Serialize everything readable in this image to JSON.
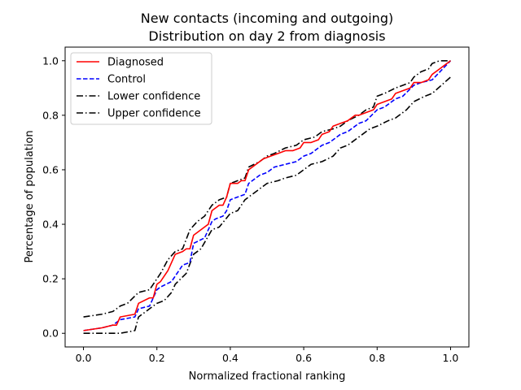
{
  "chart_data": {
    "type": "line",
    "title_line1": "New contacts (incoming and outgoing)",
    "title_line2": "Distribution on day 2 from diagnosis",
    "xlabel": "Normalized fractional ranking",
    "ylabel": "Percentage of population",
    "xlim": [
      -0.05,
      1.05
    ],
    "ylim": [
      -0.05,
      1.05
    ],
    "xticks": [
      0.0,
      0.2,
      0.4,
      0.6,
      0.8,
      1.0
    ],
    "xtick_labels": [
      "0.0",
      "0.2",
      "0.4",
      "0.6",
      "0.8",
      "1.0"
    ],
    "yticks": [
      0.0,
      0.2,
      0.4,
      0.6,
      0.8,
      1.0
    ],
    "ytick_labels": [
      "0.0",
      "0.2",
      "0.4",
      "0.6",
      "0.8",
      "1.0"
    ],
    "grid": false,
    "legend_position": "top-left",
    "series": [
      {
        "name": "Diagnosed",
        "color": "#ff0000",
        "dash": "solid",
        "x": [
          0.0,
          0.05,
          0.08,
          0.09,
          0.1,
          0.14,
          0.15,
          0.18,
          0.19,
          0.2,
          0.21,
          0.23,
          0.25,
          0.27,
          0.28,
          0.29,
          0.3,
          0.32,
          0.34,
          0.35,
          0.37,
          0.38,
          0.39,
          0.4,
          0.42,
          0.43,
          0.44,
          0.45,
          0.47,
          0.49,
          0.51,
          0.53,
          0.55,
          0.57,
          0.59,
          0.6,
          0.62,
          0.64,
          0.65,
          0.67,
          0.68,
          0.7,
          0.72,
          0.74,
          0.75,
          0.77,
          0.79,
          0.8,
          0.82,
          0.84,
          0.85,
          0.87,
          0.89,
          0.9,
          0.92,
          0.94,
          0.95,
          0.97,
          1.0
        ],
        "y": [
          0.01,
          0.02,
          0.03,
          0.03,
          0.06,
          0.07,
          0.11,
          0.13,
          0.13,
          0.18,
          0.19,
          0.23,
          0.29,
          0.3,
          0.31,
          0.31,
          0.36,
          0.38,
          0.4,
          0.45,
          0.47,
          0.47,
          0.5,
          0.55,
          0.55,
          0.56,
          0.56,
          0.6,
          0.62,
          0.64,
          0.65,
          0.66,
          0.67,
          0.67,
          0.68,
          0.7,
          0.7,
          0.71,
          0.73,
          0.74,
          0.76,
          0.77,
          0.78,
          0.8,
          0.8,
          0.81,
          0.82,
          0.84,
          0.85,
          0.86,
          0.88,
          0.89,
          0.9,
          0.92,
          0.92,
          0.93,
          0.95,
          0.97,
          1.0
        ]
      },
      {
        "name": "Control",
        "color": "#0000ff",
        "dash": "dashed",
        "x": [
          0.0,
          0.05,
          0.08,
          0.1,
          0.14,
          0.15,
          0.18,
          0.2,
          0.21,
          0.24,
          0.27,
          0.29,
          0.3,
          0.33,
          0.35,
          0.36,
          0.38,
          0.39,
          0.4,
          0.42,
          0.44,
          0.45,
          0.48,
          0.5,
          0.52,
          0.55,
          0.58,
          0.6,
          0.62,
          0.65,
          0.67,
          0.7,
          0.72,
          0.75,
          0.77,
          0.8,
          0.82,
          0.85,
          0.87,
          0.9,
          0.92,
          0.95,
          1.0
        ],
        "y": [
          0.01,
          0.02,
          0.03,
          0.05,
          0.06,
          0.09,
          0.1,
          0.16,
          0.17,
          0.19,
          0.25,
          0.26,
          0.33,
          0.35,
          0.41,
          0.42,
          0.43,
          0.45,
          0.49,
          0.5,
          0.51,
          0.55,
          0.58,
          0.59,
          0.61,
          0.62,
          0.63,
          0.65,
          0.66,
          0.69,
          0.7,
          0.73,
          0.74,
          0.77,
          0.78,
          0.82,
          0.83,
          0.86,
          0.87,
          0.91,
          0.92,
          0.93,
          1.0
        ]
      },
      {
        "name": "Lower confidence",
        "color": "#000000",
        "dash": "dashdot",
        "x": [
          0.0,
          0.05,
          0.08,
          0.1,
          0.14,
          0.15,
          0.18,
          0.2,
          0.22,
          0.24,
          0.25,
          0.28,
          0.3,
          0.32,
          0.35,
          0.37,
          0.4,
          0.42,
          0.44,
          0.45,
          0.48,
          0.5,
          0.53,
          0.55,
          0.58,
          0.6,
          0.62,
          0.65,
          0.68,
          0.7,
          0.72,
          0.75,
          0.78,
          0.8,
          0.83,
          0.85,
          0.88,
          0.9,
          0.93,
          0.95,
          1.0
        ],
        "y": [
          0.0,
          0.0,
          0.0,
          0.0,
          0.01,
          0.06,
          0.09,
          0.11,
          0.12,
          0.15,
          0.18,
          0.22,
          0.29,
          0.31,
          0.38,
          0.39,
          0.44,
          0.45,
          0.49,
          0.5,
          0.53,
          0.55,
          0.56,
          0.57,
          0.58,
          0.6,
          0.62,
          0.63,
          0.65,
          0.68,
          0.69,
          0.72,
          0.75,
          0.76,
          0.78,
          0.79,
          0.82,
          0.85,
          0.87,
          0.88,
          0.94
        ]
      },
      {
        "name": "Upper confidence",
        "color": "#000000",
        "dash": "dashdot",
        "x": [
          0.0,
          0.05,
          0.08,
          0.1,
          0.12,
          0.15,
          0.18,
          0.2,
          0.21,
          0.23,
          0.25,
          0.27,
          0.29,
          0.31,
          0.33,
          0.35,
          0.37,
          0.39,
          0.4,
          0.42,
          0.44,
          0.45,
          0.48,
          0.5,
          0.52,
          0.55,
          0.58,
          0.6,
          0.63,
          0.65,
          0.68,
          0.7,
          0.72,
          0.75,
          0.77,
          0.79,
          0.8,
          0.82,
          0.85,
          0.87,
          0.89,
          0.9,
          0.92,
          0.94,
          0.95,
          0.97,
          1.0
        ],
        "y": [
          0.06,
          0.07,
          0.08,
          0.1,
          0.11,
          0.15,
          0.16,
          0.2,
          0.22,
          0.27,
          0.3,
          0.31,
          0.38,
          0.41,
          0.43,
          0.47,
          0.49,
          0.5,
          0.55,
          0.56,
          0.57,
          0.61,
          0.63,
          0.65,
          0.66,
          0.68,
          0.69,
          0.71,
          0.72,
          0.74,
          0.75,
          0.76,
          0.78,
          0.8,
          0.82,
          0.83,
          0.87,
          0.88,
          0.9,
          0.91,
          0.92,
          0.94,
          0.96,
          0.97,
          0.99,
          1.0,
          1.0
        ]
      }
    ]
  }
}
